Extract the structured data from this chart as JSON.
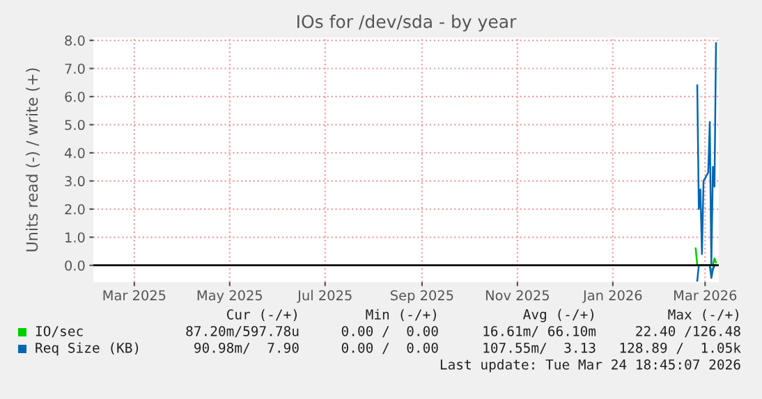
{
  "chart_data": {
    "type": "line",
    "title": "IOs for /dev/sda - by year",
    "ylabel": "Units read (-) / write (+)",
    "x": [
      "2026-03-10",
      "2026-03-11",
      "2026-03-12",
      "2026-03-13",
      "2026-03-14",
      "2026-03-15",
      "2026-03-16",
      "2026-03-17",
      "2026-03-18",
      "2026-03-19",
      "2026-03-20",
      "2026-03-21",
      "2026-03-22",
      "2026-03-23"
    ],
    "series": [
      {
        "name": "IO/sec",
        "color": "#00cc00",
        "values": [
          0.6,
          0,
          0,
          0,
          0,
          0,
          0,
          0,
          0,
          0,
          0,
          0,
          0.25,
          0.1
        ]
      },
      {
        "color": "#00cc00",
        "values": [
          0,
          0,
          0,
          0,
          0,
          0,
          0,
          0,
          0,
          0,
          -0.2,
          -0.1,
          0,
          0
        ]
      },
      {
        "name": "Req Size (KB)",
        "color": "#0066b3",
        "values": [
          null,
          6.4,
          2.0,
          2.7,
          0.4,
          3.0,
          3.1,
          3.2,
          3.3,
          5.1,
          0,
          3.5,
          2.8,
          7.9
        ]
      },
      {
        "color": "#0066b3",
        "values": [
          null,
          -0.55,
          0,
          0,
          0,
          0,
          0,
          0,
          0,
          0,
          -0.45,
          -0.15,
          0,
          0
        ]
      }
    ],
    "xlim": [
      "2025-02-17T18:45",
      "2026-03-24T18:45"
    ],
    "xticks": [
      {
        "value": "2025-03-16",
        "label": "Mar 2025"
      },
      {
        "value": "2025-05-16",
        "label": "May 2025"
      },
      {
        "value": "2025-07-16",
        "label": "Jul 2025"
      },
      {
        "value": "2025-09-16",
        "label": "Sep 2025"
      },
      {
        "value": "2025-11-16",
        "label": "Nov 2025"
      },
      {
        "value": "2026-01-16",
        "label": "Jan 2026"
      },
      {
        "value": "2026-03-16",
        "label": "Mar 2026"
      }
    ],
    "ylim": [
      -0.6,
      8.1
    ],
    "yticks": [
      {
        "value": 0,
        "label": "0.0"
      },
      {
        "value": 1,
        "label": "1.0"
      },
      {
        "value": 2,
        "label": "2.0"
      },
      {
        "value": 3,
        "label": "3.0"
      },
      {
        "value": 4,
        "label": "4.0"
      },
      {
        "value": 5,
        "label": "5.0"
      },
      {
        "value": 6,
        "label": "6.0"
      },
      {
        "value": 7,
        "label": "7.0"
      },
      {
        "value": 8,
        "label": "8.0"
      }
    ],
    "ref_lines": [
      {
        "axis": "y",
        "value": 0,
        "color": "#000000"
      }
    ],
    "grid": true,
    "legend": "bottom",
    "annotations": [
      "Cur (-/+)",
      "Min (-/+)",
      "Avg (-/+)",
      "Max (-/+)",
      "87.20m/597.78u",
      "0.00 /  0.00",
      "16.61m/ 66.10m",
      "22.40 /126.48",
      "90.98m/  7.90",
      "0.00 /  0.00",
      "107.55m/  3.13",
      "128.89 /  1.05k",
      "Last update: Tue Mar 24 18:45:07 2026"
    ]
  }
}
